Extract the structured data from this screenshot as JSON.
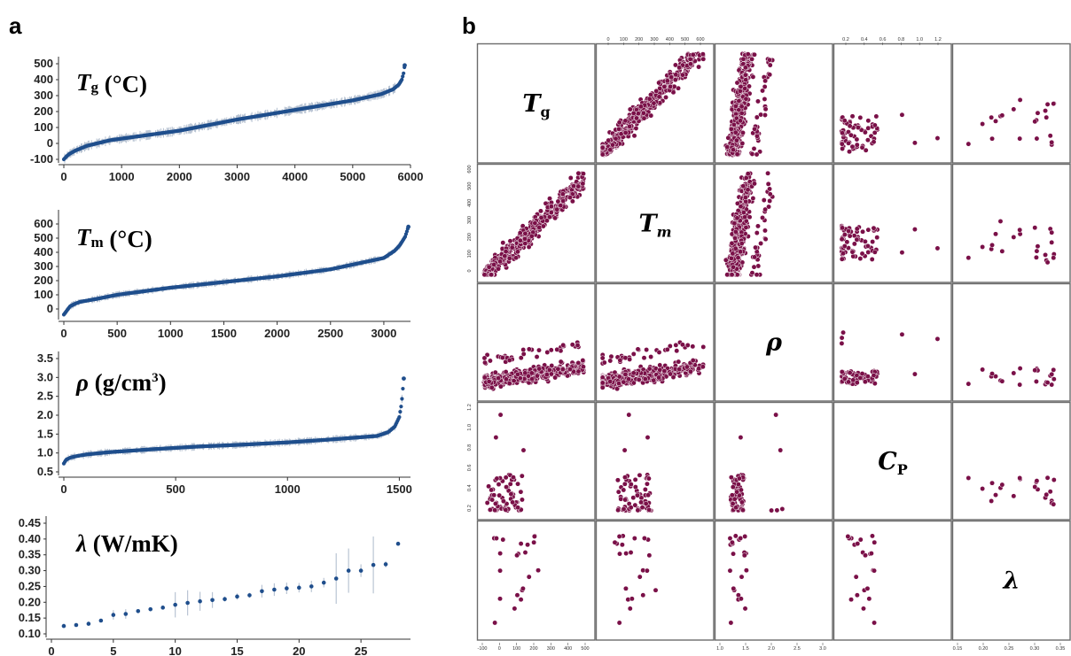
{
  "chart_data": [
    {
      "panel": "a",
      "type": "scatter",
      "label": {
        "symbol": "T",
        "subscript": "g",
        "unit": " (°C)"
      },
      "xlim": [
        0,
        6000
      ],
      "ylim": [
        -100,
        500
      ],
      "xticks": [
        "0",
        "1000",
        "2000",
        "3000",
        "4000",
        "5000",
        "6000"
      ],
      "yticks": [
        "-100",
        "0",
        "100",
        "200",
        "300",
        "400",
        "500"
      ],
      "n_points": 5900,
      "curve": {
        "x": [
          0,
          50,
          100,
          200,
          400,
          800,
          1500,
          2000,
          3000,
          4000,
          5000,
          5500,
          5700,
          5800,
          5850,
          5880,
          5900
        ],
        "y": [
          -100,
          -80,
          -65,
          -45,
          -15,
          20,
          55,
          80,
          150,
          210,
          270,
          310,
          340,
          370,
          400,
          440,
          490
        ]
      },
      "error_spread": 18
    },
    {
      "panel": "a",
      "type": "scatter",
      "label": {
        "symbol": "T",
        "subscript": "m",
        "unit": " (°C)"
      },
      "xlim": [
        0,
        3250
      ],
      "ylim": [
        -50,
        650
      ],
      "xticks": [
        "0",
        "500",
        "1000",
        "1500",
        "2000",
        "2500",
        "3000"
      ],
      "yticks": [
        "0",
        "100",
        "200",
        "300",
        "400",
        "500",
        "600"
      ],
      "n_points": 3230,
      "curve": {
        "x": [
          0,
          30,
          60,
          100,
          150,
          300,
          500,
          1000,
          1500,
          2000,
          2500,
          3000,
          3100,
          3150,
          3200,
          3230
        ],
        "y": [
          -40,
          -10,
          20,
          35,
          50,
          70,
          100,
          150,
          190,
          230,
          280,
          360,
          410,
          450,
          510,
          580
        ]
      },
      "error_spread": 15
    },
    {
      "panel": "a",
      "type": "scatter",
      "label": {
        "symbol": "ρ",
        "unit": " (g/cm",
        "superscript": "3",
        "close": ")"
      },
      "xlim": [
        0,
        1550
      ],
      "ylim": [
        0.5,
        3.5
      ],
      "xticks": [
        "0",
        "500",
        "1000",
        "1500"
      ],
      "yticks": [
        "0.5",
        "1.0",
        "1.5",
        "2.0",
        "2.5",
        "3.0",
        "3.5"
      ],
      "n_points": 1520,
      "curve": {
        "x": [
          0,
          10,
          30,
          60,
          100,
          200,
          400,
          600,
          800,
          1000,
          1200,
          1400,
          1450,
          1480,
          1500,
          1510,
          1520
        ],
        "y": [
          0.72,
          0.82,
          0.88,
          0.92,
          0.96,
          1.02,
          1.1,
          1.17,
          1.22,
          1.28,
          1.36,
          1.45,
          1.55,
          1.7,
          1.95,
          2.3,
          2.97
        ]
      },
      "error_spread": 0.06
    },
    {
      "panel": "a",
      "type": "scatter",
      "label": {
        "symbol": "λ",
        "unit": " (W/mK)"
      },
      "xlim": [
        0,
        29
      ],
      "ylim": [
        0.1,
        0.45
      ],
      "xticks": [
        "0",
        "5",
        "10",
        "15",
        "20",
        "25"
      ],
      "yticks": [
        "0.10",
        "0.15",
        "0.20",
        "0.25",
        "0.30",
        "0.35",
        "0.40",
        "0.45"
      ],
      "x": [
        1,
        2,
        3,
        4,
        5,
        6,
        7,
        8,
        9,
        10,
        11,
        12,
        13,
        14,
        15,
        16,
        17,
        18,
        19,
        20,
        21,
        22,
        23,
        24,
        25,
        26,
        27,
        28
      ],
      "y": [
        0.125,
        0.128,
        0.132,
        0.142,
        0.16,
        0.163,
        0.172,
        0.178,
        0.183,
        0.192,
        0.198,
        0.203,
        0.207,
        0.21,
        0.218,
        0.222,
        0.235,
        0.24,
        0.244,
        0.246,
        0.25,
        0.262,
        0.275,
        0.3,
        0.3,
        0.318,
        0.32,
        0.385
      ],
      "err": [
        0.006,
        0.004,
        0.004,
        0.005,
        0.015,
        0.015,
        0.006,
        0.006,
        0.006,
        0.04,
        0.04,
        0.03,
        0.025,
        0.008,
        0.01,
        0.008,
        0.02,
        0.02,
        0.018,
        0.015,
        0.018,
        0.015,
        0.08,
        0.07,
        0.02,
        0.09,
        0.01,
        0.003
      ]
    }
  ],
  "panel_labels": {
    "a": "a",
    "b": "b"
  },
  "matrix": {
    "diag": [
      {
        "symbol": "T",
        "subscript": "g"
      },
      {
        "symbol": "T",
        "subscript": "m"
      },
      {
        "symbol": "ρ",
        "subscript": ""
      },
      {
        "symbol": "C",
        "subscript": "P"
      },
      {
        "symbol": "λ",
        "subscript": ""
      }
    ],
    "top_ticks": [
      {
        "col": 1,
        "labels": [
          "0",
          "100",
          "200",
          "300",
          "400",
          "500",
          "600"
        ]
      },
      {
        "col": 3,
        "labels": [
          "0.2",
          "0.4",
          "0.6",
          "0.8",
          "1.0",
          "1.2"
        ]
      }
    ],
    "bottom_ticks": [
      {
        "col": 0,
        "labels": [
          "-100",
          "0",
          "100",
          "200",
          "300",
          "400",
          "500"
        ]
      },
      {
        "col": 2,
        "labels": [
          "1.0",
          "1.5",
          "2.0",
          "2.5",
          "3.0"
        ]
      },
      {
        "col": 4,
        "labels": [
          "0.15",
          "0.20",
          "0.25",
          "0.30",
          "0.35"
        ]
      }
    ],
    "left_ticks": [
      {
        "row": 1,
        "labels": [
          "0",
          "100",
          "200",
          "300",
          "400",
          "500",
          "600"
        ]
      },
      {
        "row": 3,
        "labels": [
          "0.2",
          "0.4",
          "0.6",
          "0.8",
          "1.0",
          "1.2"
        ]
      }
    ],
    "ranges": {
      "Tg": [
        -120,
        520
      ],
      "Tm": [
        -50,
        650
      ],
      "rho": [
        0.8,
        3.0
      ],
      "Cp": [
        0.15,
        1.25
      ],
      "lam": [
        0.11,
        0.38
      ]
    },
    "point_color": "#7a1048",
    "point_edge": "#ffffff"
  },
  "colors": {
    "curve": "#1f4e8c",
    "error": "#b9c4d3",
    "axis": "#333333",
    "frame": "#6b6b6b"
  }
}
